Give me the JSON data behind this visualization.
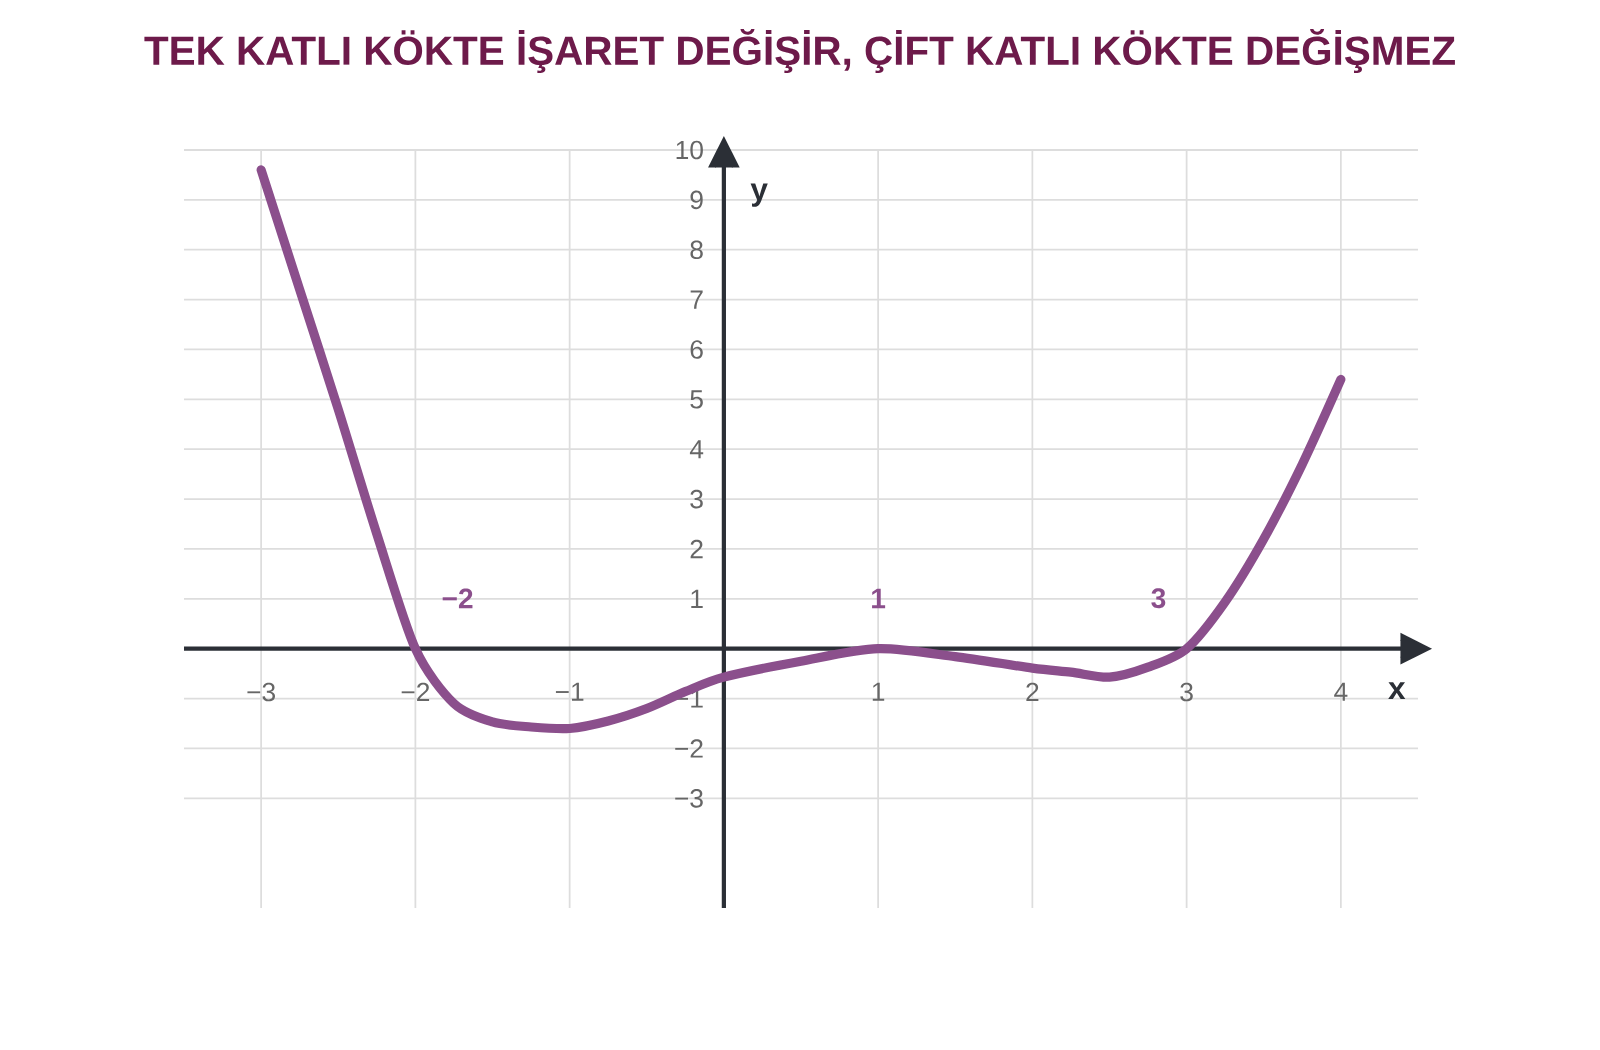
{
  "chart_data": {
    "type": "line",
    "title": "TEK KATLI KÖKTE İŞARET DEĞİŞİR, ÇİFT KATLI KÖKTE DEĞİŞMEZ",
    "xlabel": "x",
    "ylabel": "y",
    "x": [
      -3,
      -2.75,
      -2.5,
      -2.25,
      -2,
      -1.75,
      -1.5,
      -1.25,
      -1,
      -0.75,
      -0.5,
      -0.25,
      0,
      0.5,
      1,
      1.5,
      2,
      2.25,
      2.5,
      2.75,
      3,
      3.25,
      3.5,
      3.75,
      4
    ],
    "series": [
      {
        "color": "#8b4f8c",
        "values": [
          9.6,
          7.2,
          4.8,
          2.3,
          0,
          -1.1,
          -1.47,
          -1.57,
          -1.6,
          -1.45,
          -1.2,
          -0.86,
          -0.57,
          -0.25,
          0,
          -0.16,
          -0.39,
          -0.47,
          -0.57,
          -0.37,
          0,
          0.94,
          2.2,
          3.7,
          5.4
        ]
      }
    ],
    "xlim": [
      -3.5,
      4.5
    ],
    "ylim": [
      -5.2,
      10
    ],
    "xticks": [
      {
        "value": -3,
        "label": "−3"
      },
      {
        "value": -2,
        "label": "−2"
      },
      {
        "value": -1,
        "label": "−1"
      },
      1,
      2,
      3,
      4
    ],
    "yticks": [
      {
        "value": -3,
        "label": "−3"
      },
      {
        "value": -2,
        "label": "−2"
      },
      {
        "value": -1,
        "label": "−1"
      },
      1,
      2,
      3,
      4,
      5,
      6,
      7,
      8,
      9,
      10
    ],
    "grid": true,
    "annotations": [
      {
        "text": "−2",
        "x": -2,
        "y": 0
      },
      {
        "text": "1",
        "x": 1,
        "y": 0
      },
      {
        "text": "3",
        "x": 3,
        "y": 0
      }
    ]
  }
}
